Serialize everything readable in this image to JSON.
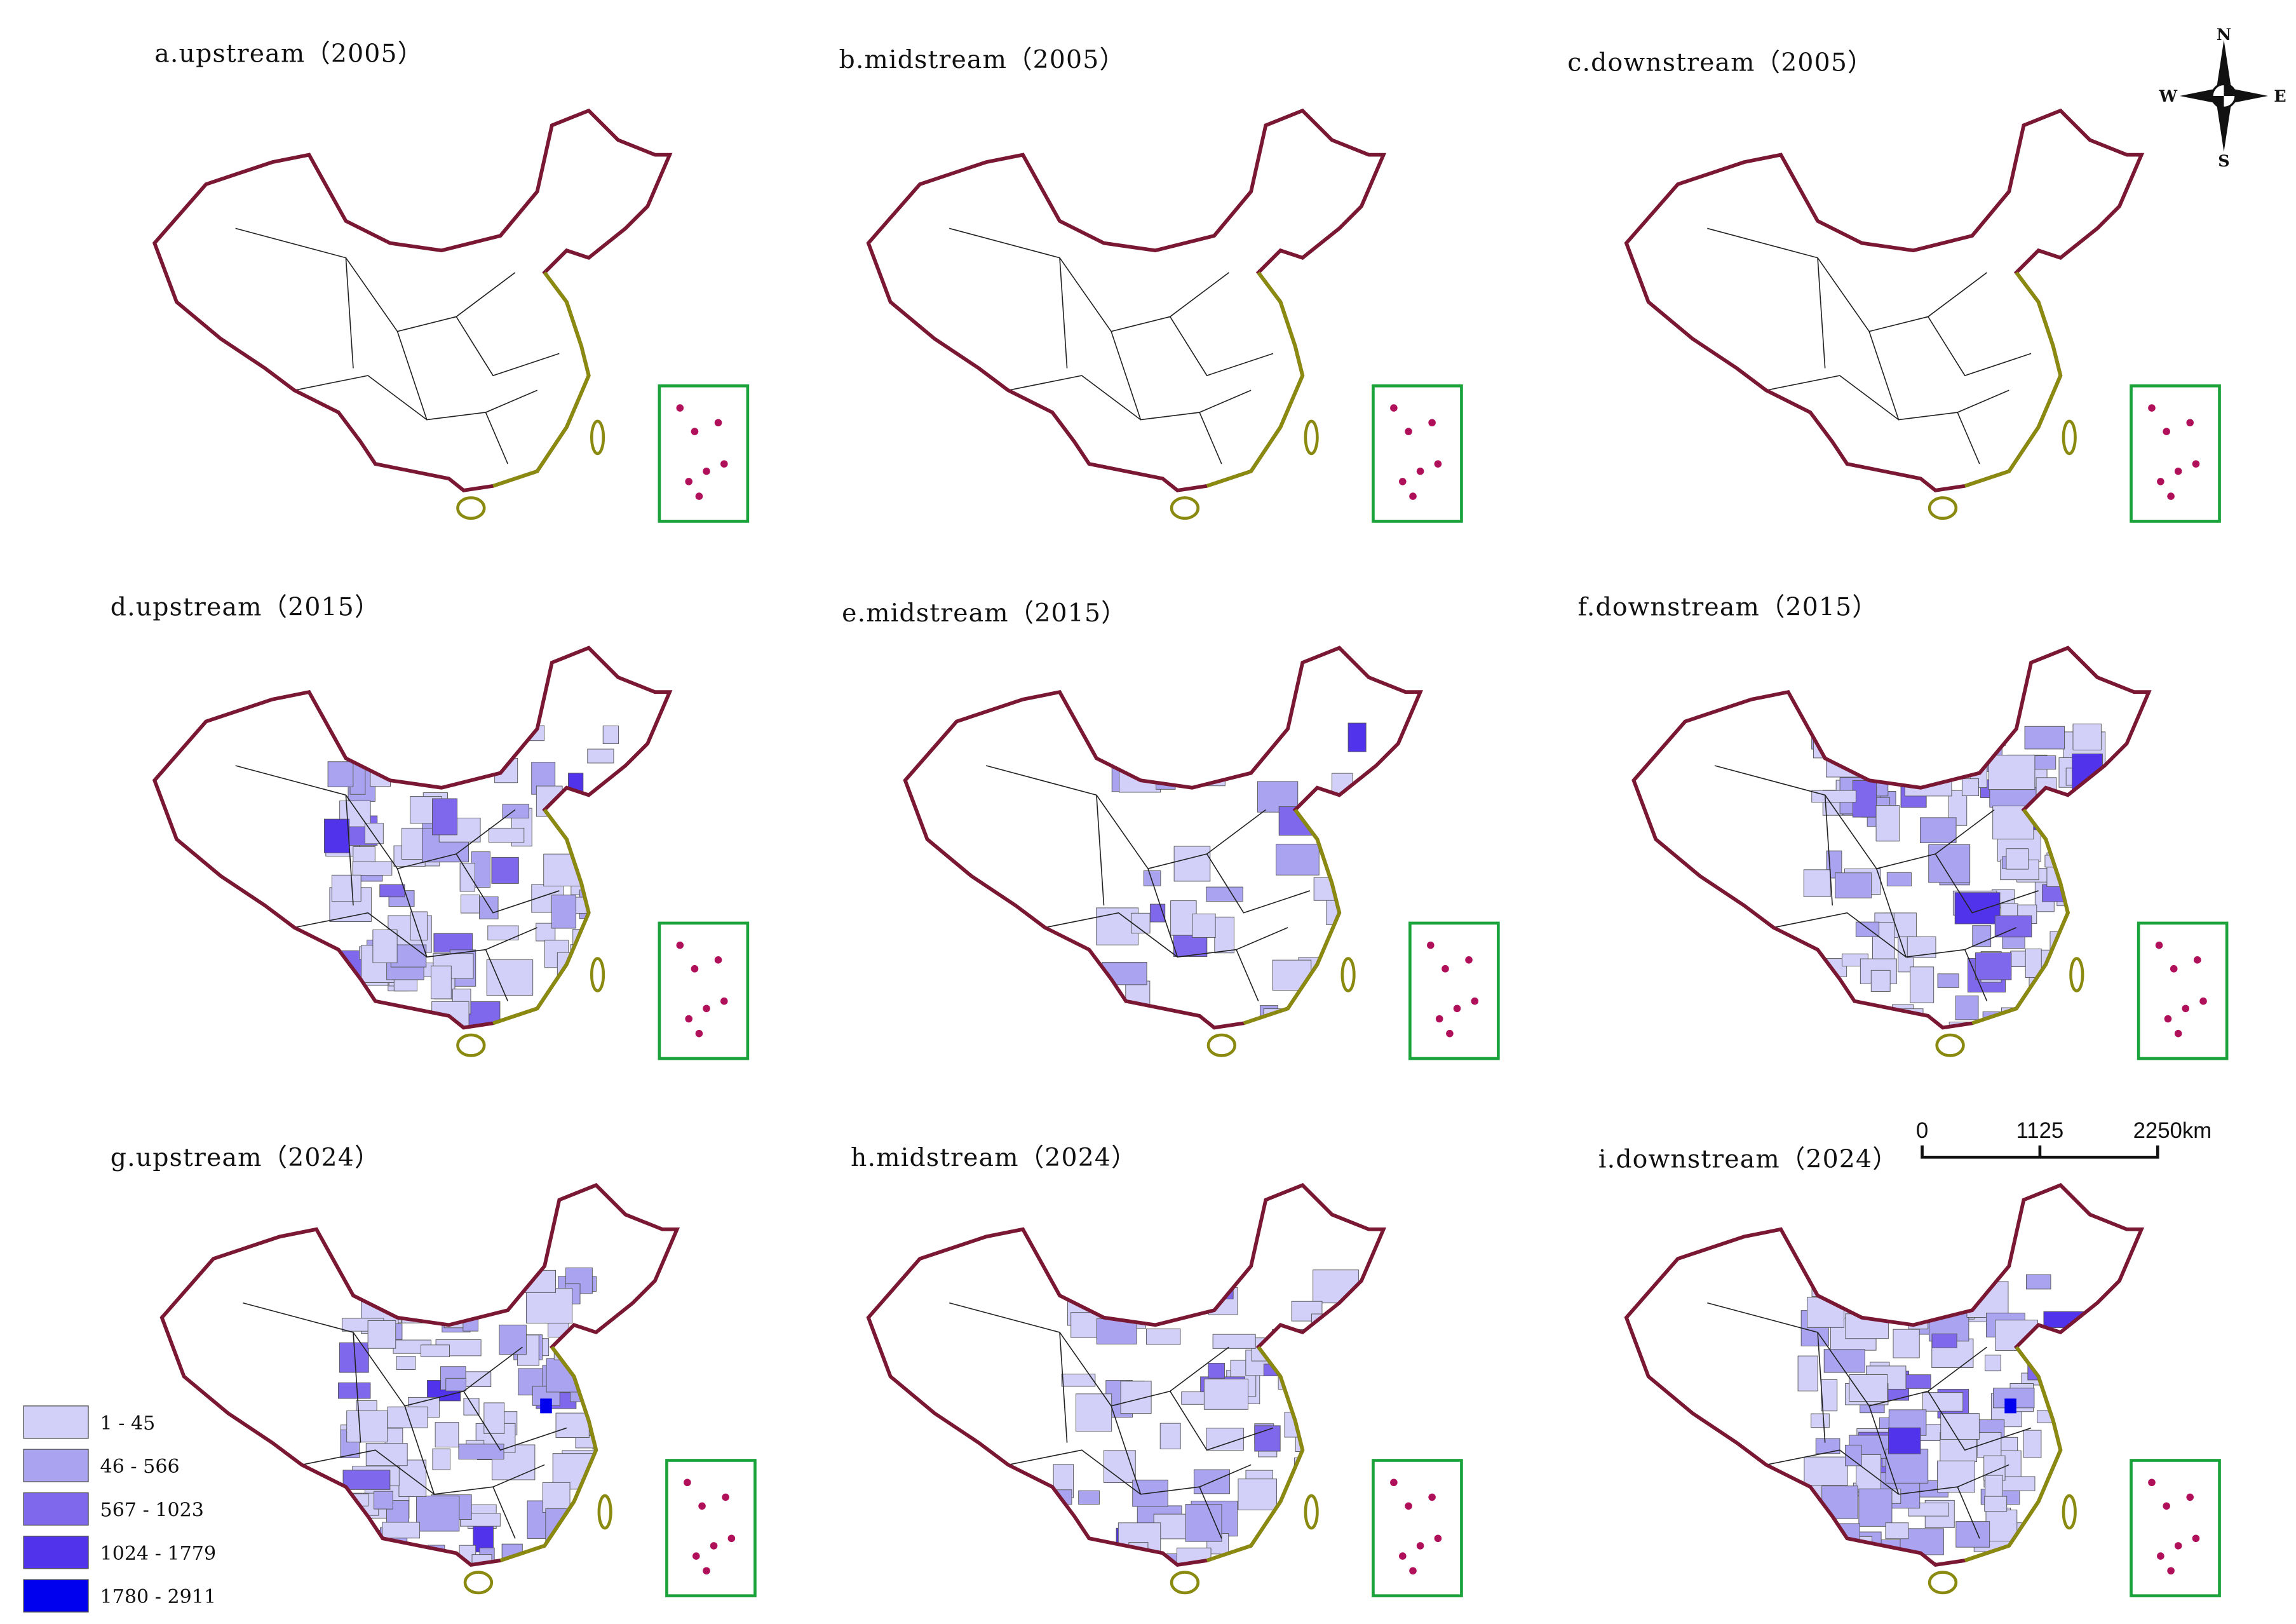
{
  "panels": [
    {
      "title": "a.upstream（2005）"
    },
    {
      "title": "b.midstream（2005）"
    },
    {
      "title": "c.downstream（2005）"
    },
    {
      "title": "d.upstream（2015）"
    },
    {
      "title": "e.midstream（2015）"
    },
    {
      "title": "f.downstream（2015）"
    },
    {
      "title": "g.upstream（2024）"
    },
    {
      "title": "h.midstream（2024）"
    },
    {
      "title": "i.downstream（2024）"
    }
  ],
  "legend": {
    "items": [
      {
        "label": "1 - 45",
        "color": "#d2d0f8"
      },
      {
        "label": "46 - 566",
        "color": "#a9a3f0"
      },
      {
        "label": "567 - 1023",
        "color": "#7f68ec"
      },
      {
        "label": "1024 - 1779",
        "color": "#5233ec"
      },
      {
        "label": "1780 - 2911",
        "color": "#0000ee"
      }
    ]
  },
  "compass": {
    "north": "N",
    "south": "S",
    "east": "E",
    "west": "W"
  },
  "scale_bar": {
    "labels": [
      "0",
      "1125",
      "2250km"
    ]
  }
}
